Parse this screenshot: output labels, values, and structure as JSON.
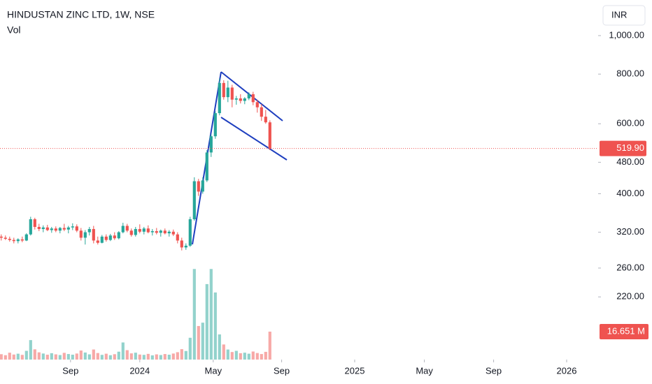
{
  "chart_data": {
    "type": "candlestick",
    "title": "HINDUSTAN ZINC LTD, 1W, NSE",
    "volume_title": "Vol",
    "currency": "INR",
    "log_scale": true,
    "up_color": "#26a69a",
    "down_color": "#ef5350",
    "pattern_color": "#1e3fbf",
    "open": [
      312,
      310,
      308,
      306,
      304,
      307,
      305,
      316,
      345,
      330,
      326,
      329,
      324,
      327,
      323,
      328,
      325,
      329,
      331,
      323,
      310,
      320,
      326,
      305,
      301,
      312,
      306,
      314,
      309,
      320,
      332,
      323,
      315,
      326,
      321,
      327,
      320,
      322,
      319,
      323,
      318,
      321,
      316,
      305,
      293,
      296,
      345,
      430,
      405,
      432,
      508,
      558,
      638,
      760,
      700,
      740,
      690,
      695,
      685,
      695,
      712,
      680,
      660,
      625,
      605
    ],
    "high": [
      316,
      314,
      312,
      310,
      309,
      312,
      318,
      350,
      348,
      336,
      333,
      334,
      330,
      331,
      330,
      336,
      332,
      337,
      335,
      328,
      324,
      330,
      332,
      312,
      315,
      316,
      317,
      320,
      322,
      338,
      336,
      327,
      330,
      335,
      330,
      333,
      326,
      328,
      325,
      327,
      324,
      325,
      320,
      310,
      300,
      350,
      440,
      436,
      440,
      515,
      565,
      645,
      780,
      772,
      770,
      752,
      705,
      712,
      700,
      720,
      722,
      690,
      672,
      650,
      612
    ],
    "low": [
      305,
      306,
      303,
      300,
      300,
      302,
      304,
      314,
      325,
      322,
      320,
      322,
      319,
      320,
      318,
      322,
      318,
      324,
      320,
      305,
      298,
      314,
      300,
      298,
      300,
      303,
      304,
      306,
      307,
      318,
      320,
      312,
      312,
      318,
      316,
      318,
      314,
      316,
      312,
      316,
      312,
      313,
      300,
      288,
      289,
      294,
      342,
      395,
      400,
      428,
      495,
      550,
      630,
      690,
      680,
      660,
      670,
      675,
      672,
      688,
      668,
      640,
      610,
      600,
      515
    ],
    "close": [
      310,
      308,
      306,
      304,
      307,
      305,
      316,
      345,
      330,
      326,
      329,
      324,
      327,
      323,
      328,
      325,
      329,
      331,
      323,
      310,
      320,
      326,
      305,
      301,
      312,
      306,
      314,
      309,
      320,
      332,
      323,
      315,
      326,
      321,
      327,
      320,
      322,
      319,
      323,
      318,
      321,
      316,
      305,
      293,
      296,
      345,
      430,
      405,
      432,
      508,
      558,
      638,
      760,
      700,
      740,
      690,
      695,
      685,
      695,
      712,
      680,
      660,
      625,
      605,
      519.9
    ],
    "volume": [
      3200000,
      2600000,
      4100000,
      3000000,
      3500000,
      2800000,
      5200000,
      11600000,
      6100000,
      4300000,
      3600000,
      2900000,
      3800000,
      3100000,
      2700000,
      4000000,
      3300000,
      2900000,
      3600000,
      5400000,
      4200000,
      3100000,
      6000000,
      3900000,
      2800000,
      3500000,
      2600000,
      3200000,
      4700000,
      10200000,
      5600000,
      3700000,
      4100000,
      3000000,
      2800000,
      3400000,
      2500000,
      3100000,
      2700000,
      3300000,
      2900000,
      3600000,
      4400000,
      6200000,
      5100000,
      13000000,
      54000000,
      20000000,
      22000000,
      45000000,
      54000000,
      40000000,
      15000000,
      9000000,
      6000000,
      4500000,
      5200000,
      3800000,
      4100000,
      3500000,
      4800000,
      3900000,
      3300000,
      4600000,
      16651000
    ],
    "last_price_label": "519.90",
    "last_volume_label": "16.651 M",
    "xlim": [
      -0.3,
      142.2
    ],
    "xticks": [
      {
        "value": 16.5,
        "label": "Sep"
      },
      {
        "value": 33,
        "label": "2024"
      },
      {
        "value": 50.5,
        "label": "May"
      },
      {
        "value": 66.8,
        "label": "Sep"
      },
      {
        "value": 84.2,
        "label": "2025"
      },
      {
        "value": 100.8,
        "label": "May"
      },
      {
        "value": 117.3,
        "label": "Sep"
      },
      {
        "value": 134.7,
        "label": "2026"
      }
    ],
    "ylim": [
      153,
      1190
    ],
    "yticks": [
      {
        "value": 1000,
        "label": "1,000.00"
      },
      {
        "value": 800,
        "label": "800.00"
      },
      {
        "value": 600,
        "label": "600.00"
      },
      {
        "value": 480,
        "label": "480.00"
      },
      {
        "value": 400,
        "label": "400.00"
      },
      {
        "value": 320,
        "label": "320.00"
      },
      {
        "value": 260,
        "label": "260.00"
      },
      {
        "value": 220,
        "label": "220.00"
      }
    ],
    "volume_ylim": [
      0,
      66600000
    ]
  }
}
